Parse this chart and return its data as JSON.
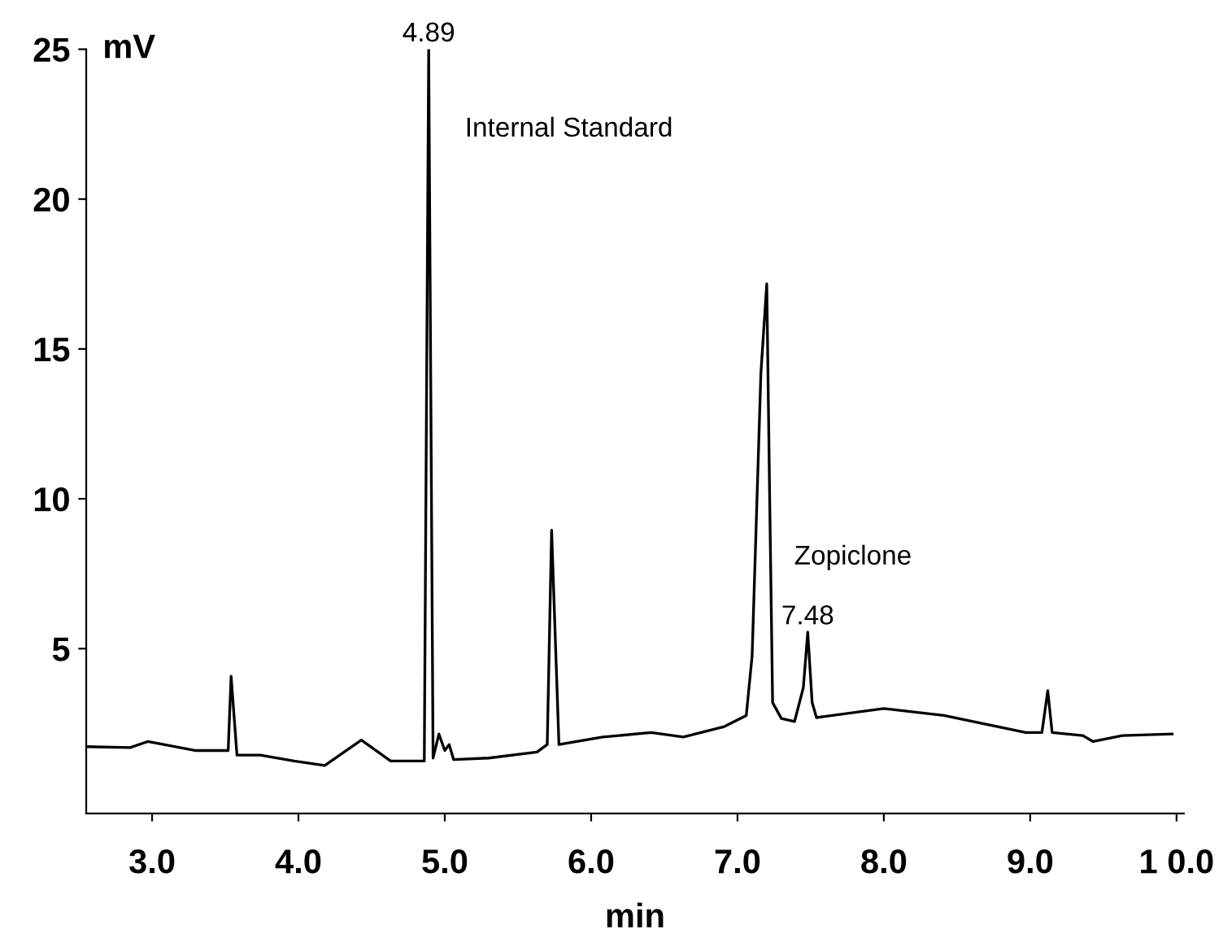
{
  "chart_data": {
    "type": "line",
    "xlabel": "min",
    "ylabel": "mV",
    "series": [
      {
        "color": "#000000",
        "x": [
          2.55,
          2.85,
          2.97,
          3.3,
          3.52,
          3.54,
          3.58,
          3.74,
          3.97,
          4.18,
          4.43,
          4.63,
          4.86,
          4.89,
          4.92,
          4.96,
          5.0,
          5.03,
          5.06,
          5.3,
          5.63,
          5.7,
          5.73,
          5.78,
          6.08,
          6.41,
          6.63,
          6.91,
          7.06,
          7.1,
          7.16,
          7.2,
          7.22,
          7.24,
          7.3,
          7.39,
          7.45,
          7.48,
          7.51,
          7.54,
          8.0,
          8.41,
          8.97,
          9.08,
          9.12,
          9.15,
          9.36,
          9.43,
          9.63,
          9.97
        ],
        "values": [
          1.73,
          1.7,
          1.9,
          1.6,
          1.6,
          4.08,
          1.45,
          1.45,
          1.25,
          1.1,
          1.95,
          1.25,
          1.25,
          25,
          1.35,
          2.15,
          1.6,
          1.8,
          1.3,
          1.35,
          1.55,
          1.8,
          8.95,
          1.8,
          2.05,
          2.2,
          2.05,
          2.4,
          2.77,
          4.76,
          14.2,
          17.17,
          10,
          3.2,
          2.67,
          2.57,
          3.7,
          5.55,
          3.2,
          2.7,
          3.0,
          2.77,
          2.2,
          2.2,
          3.6,
          2.2,
          2.1,
          1.9,
          2.1,
          2.15
        ]
      }
    ],
    "xlim": [
      2.55,
      10.05
    ],
    "ylim": [
      -0.5,
      25
    ],
    "xticks": [
      {
        "value": 3,
        "label": "3.0"
      },
      {
        "value": 4,
        "label": "4.0"
      },
      {
        "value": 5,
        "label": "5.0"
      },
      {
        "value": 6,
        "label": "6.0"
      },
      {
        "value": 7,
        "label": "7.0"
      },
      {
        "value": 8,
        "label": "8.0"
      },
      {
        "value": 9,
        "label": "9.0"
      },
      {
        "value": 10,
        "label": "1 0.0"
      }
    ],
    "yticks": [
      5,
      10,
      15,
      20,
      25
    ],
    "annotations": [
      {
        "text": "4.89",
        "x": 4.89,
        "y": 25
      },
      "Internal Standard",
      "Zopiclone",
      {
        "text": "7.48",
        "x": 7.48,
        "y": 5.55
      }
    ]
  }
}
